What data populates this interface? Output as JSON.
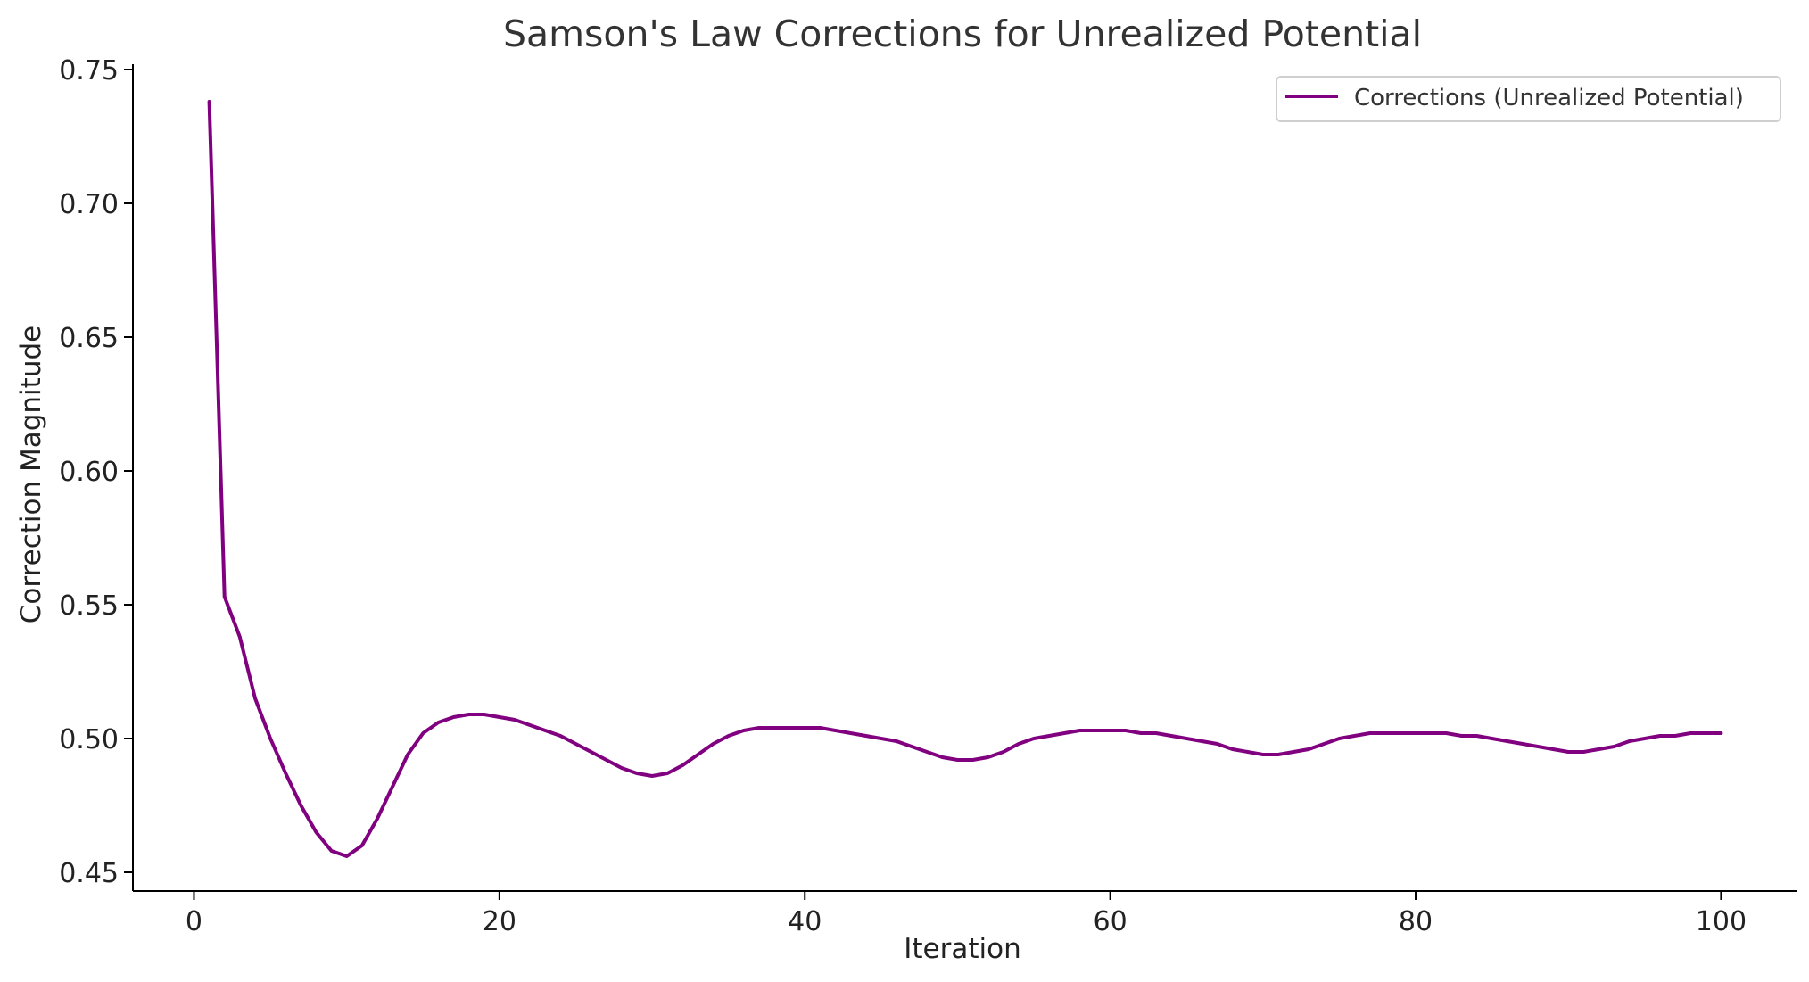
{
  "chart_data": {
    "type": "line",
    "title": "Samson's Law Corrections for Unrealized Potential",
    "xlabel": "Iteration",
    "ylabel": "Correction Magnitude",
    "xlim": [
      -4,
      105
    ],
    "ylim": [
      0.443,
      0.752
    ],
    "xticks": [
      0,
      20,
      40,
      60,
      80,
      100
    ],
    "yticks": [
      0.45,
      0.5,
      0.55,
      0.6,
      0.65,
      0.7,
      0.75
    ],
    "xtick_labels": [
      "0",
      "20",
      "40",
      "60",
      "80",
      "100"
    ],
    "ytick_labels": [
      "0.45",
      "0.50",
      "0.55",
      "0.60",
      "0.65",
      "0.70",
      "0.75"
    ],
    "grid": false,
    "legend_position": "top-right",
    "series": [
      {
        "name": "Corrections (Unrealized Potential)",
        "color": "#800080",
        "x": [
          1,
          2,
          3,
          4,
          5,
          6,
          7,
          8,
          9,
          10,
          11,
          12,
          13,
          14,
          15,
          16,
          17,
          18,
          19,
          20,
          21,
          22,
          23,
          24,
          25,
          26,
          27,
          28,
          29,
          30,
          31,
          32,
          33,
          34,
          35,
          36,
          37,
          38,
          39,
          40,
          41,
          42,
          43,
          44,
          45,
          46,
          47,
          48,
          49,
          50,
          51,
          52,
          53,
          54,
          55,
          56,
          57,
          58,
          59,
          60,
          61,
          62,
          63,
          64,
          65,
          66,
          67,
          68,
          69,
          70,
          71,
          72,
          73,
          74,
          75,
          76,
          77,
          78,
          79,
          80,
          81,
          82,
          83,
          84,
          85,
          86,
          87,
          88,
          89,
          90,
          91,
          92,
          93,
          94,
          95,
          96,
          97,
          98,
          99,
          100
        ],
        "y": [
          0.738,
          0.553,
          0.538,
          0.515,
          0.5,
          0.487,
          0.475,
          0.465,
          0.458,
          0.456,
          0.46,
          0.47,
          0.482,
          0.494,
          0.502,
          0.506,
          0.508,
          0.509,
          0.509,
          0.508,
          0.507,
          0.505,
          0.503,
          0.501,
          0.498,
          0.495,
          0.492,
          0.489,
          0.487,
          0.486,
          0.487,
          0.49,
          0.494,
          0.498,
          0.501,
          0.503,
          0.504,
          0.504,
          0.504,
          0.504,
          0.504,
          0.503,
          0.502,
          0.501,
          0.5,
          0.499,
          0.497,
          0.495,
          0.493,
          0.492,
          0.492,
          0.493,
          0.495,
          0.498,
          0.5,
          0.501,
          0.502,
          0.503,
          0.503,
          0.503,
          0.503,
          0.502,
          0.502,
          0.501,
          0.5,
          0.499,
          0.498,
          0.496,
          0.495,
          0.494,
          0.494,
          0.495,
          0.496,
          0.498,
          0.5,
          0.501,
          0.502,
          0.502,
          0.502,
          0.502,
          0.502,
          0.502,
          0.501,
          0.501,
          0.5,
          0.499,
          0.498,
          0.497,
          0.496,
          0.495,
          0.495,
          0.496,
          0.497,
          0.499,
          0.5,
          0.501,
          0.501,
          0.502,
          0.502,
          0.502
        ]
      }
    ]
  }
}
